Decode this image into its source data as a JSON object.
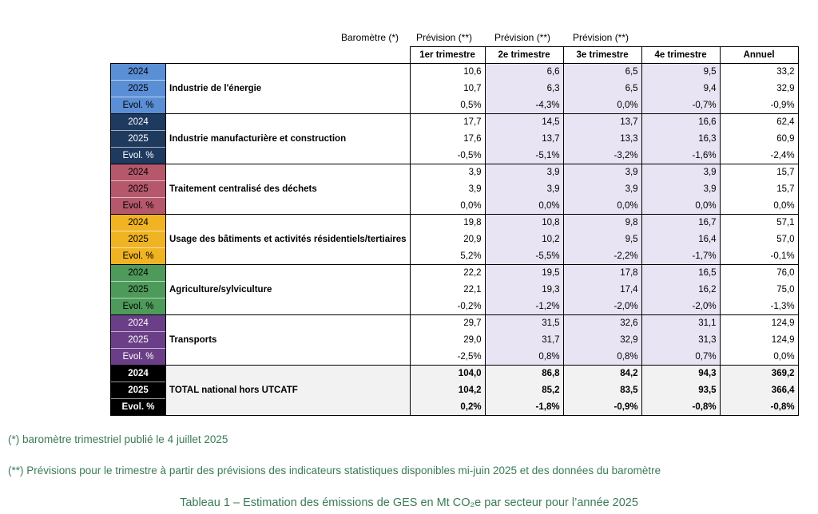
{
  "top_headers": [
    "Baromètre (*)",
    "Prévision (**)",
    "Prévision (**)",
    "Prévision (**)"
  ],
  "col_headers": [
    "1er trimestre",
    "2e trimestre",
    "3e trimestre",
    "4e trimestre",
    "Annuel"
  ],
  "row_labels": [
    "2024",
    "2025",
    "Evol. %"
  ],
  "colors": {
    "energie": "#5a8fd6",
    "manuf": "#1f3a5f",
    "dechets": "#b5586c",
    "batiments": "#f0b323",
    "agri": "#4e9a5b",
    "transports": "#6b3f87",
    "total": "#000000",
    "note_text": "#3b7a57",
    "forecast_shade": "#e8e4f3"
  },
  "sectors": [
    {
      "name": "Industrie de l'énergie",
      "color_key": "energie",
      "label_text": "#000000",
      "rows": [
        [
          "10,6",
          "6,6",
          "6,5",
          "9,5",
          "33,2"
        ],
        [
          "10,7",
          "6,3",
          "6,5",
          "9,4",
          "32,9"
        ],
        [
          "0,5%",
          "-4,3%",
          "0,0%",
          "-0,7%",
          "-0,9%"
        ]
      ]
    },
    {
      "name": "Industrie manufacturière et construction",
      "color_key": "manuf",
      "label_text": "#ffffff",
      "rows": [
        [
          "17,7",
          "14,5",
          "13,7",
          "16,6",
          "62,4"
        ],
        [
          "17,6",
          "13,7",
          "13,3",
          "16,3",
          "60,9"
        ],
        [
          "-0,5%",
          "-5,1%",
          "-3,2%",
          "-1,6%",
          "-2,4%"
        ]
      ]
    },
    {
      "name": "Traitement centralisé des déchets",
      "color_key": "dechets",
      "label_text": "#000000",
      "rows": [
        [
          "3,9",
          "3,9",
          "3,9",
          "3,9",
          "15,7"
        ],
        [
          "3,9",
          "3,9",
          "3,9",
          "3,9",
          "15,7"
        ],
        [
          "0,0%",
          "0,0%",
          "0,0%",
          "0,0%",
          "0,0%"
        ]
      ]
    },
    {
      "name": "Usage des bâtiments et activités résidentiels/tertiaires",
      "color_key": "batiments",
      "label_text": "#000000",
      "rows": [
        [
          "19,8",
          "10,8",
          "9,8",
          "16,7",
          "57,1"
        ],
        [
          "20,9",
          "10,2",
          "9,5",
          "16,4",
          "57,0"
        ],
        [
          "5,2%",
          "-5,5%",
          "-2,2%",
          "-1,7%",
          "-0,1%"
        ]
      ]
    },
    {
      "name": "Agriculture/sylviculture",
      "color_key": "agri",
      "label_text": "#000000",
      "rows": [
        [
          "22,2",
          "19,5",
          "17,8",
          "16,5",
          "76,0"
        ],
        [
          "22,1",
          "19,3",
          "17,4",
          "16,2",
          "75,0"
        ],
        [
          "-0,2%",
          "-1,2%",
          "-2,0%",
          "-2,0%",
          "-1,3%"
        ]
      ]
    },
    {
      "name": "Transports",
      "color_key": "transports",
      "label_text": "#ffffff",
      "rows": [
        [
          "29,7",
          "31,5",
          "32,6",
          "31,1",
          "124,9"
        ],
        [
          "29,0",
          "31,7",
          "32,9",
          "31,3",
          "124,9"
        ],
        [
          "-2,5%",
          "0,8%",
          "0,8%",
          "0,7%",
          "0,0%"
        ]
      ]
    },
    {
      "name": "TOTAL national hors UTCATF",
      "color_key": "total",
      "label_text": "#ffffff",
      "is_total": true,
      "rows": [
        [
          "104,0",
          "86,8",
          "84,2",
          "94,3",
          "369,2"
        ],
        [
          "104,2",
          "85,2",
          "83,5",
          "93,5",
          "366,4"
        ],
        [
          "0,2%",
          "-1,8%",
          "-0,9%",
          "-0,8%",
          "-0,8%"
        ]
      ]
    }
  ],
  "note1": "(*) baromètre trimestriel publié le 4 juillet 2025",
  "note2": "(**) Prévisions pour le trimestre à partir des prévisions des indicateurs statistiques disponibles mi-juin 2025 et des données du baromètre",
  "caption": "Tableau 1 – Estimation des émissions de GES en Mt CO₂e par secteur pour l’année 2025"
}
